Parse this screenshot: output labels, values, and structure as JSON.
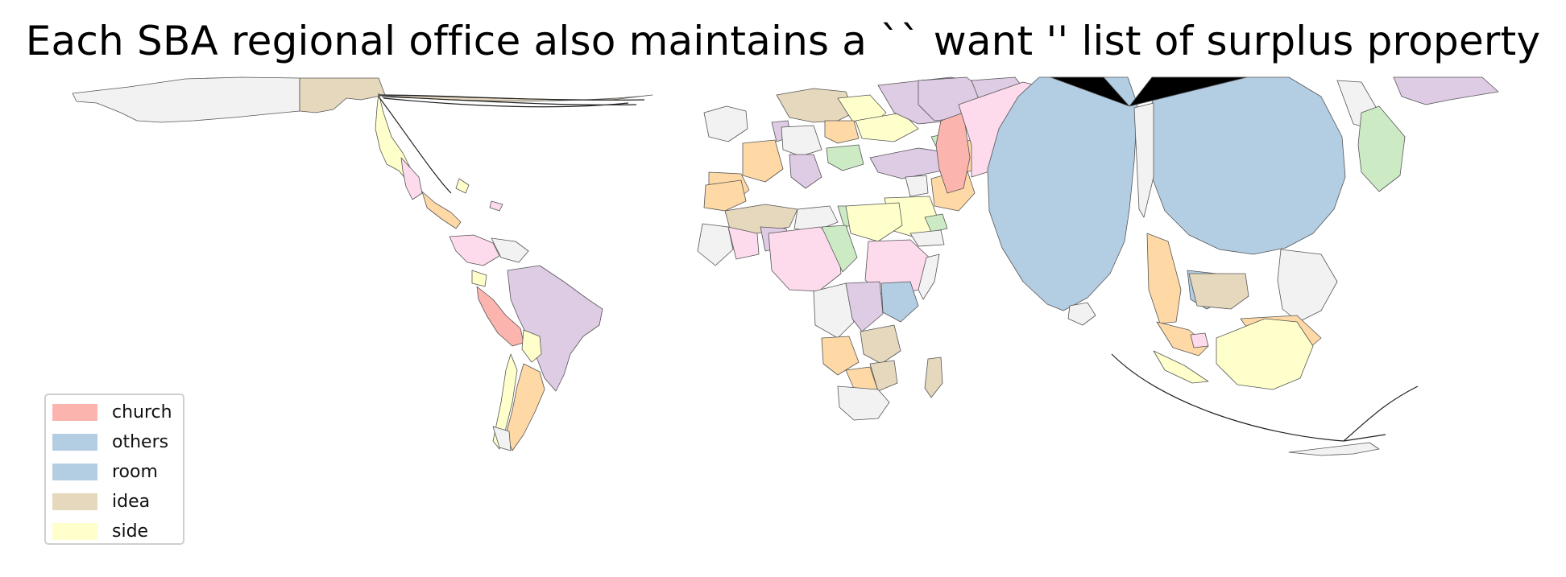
{
  "title": "Each SBA regional office also maintains a `` want '' list of surplus property",
  "legend": {
    "placement": "lower-left",
    "items": [
      {
        "label": "church",
        "color": "#fbb4ae"
      },
      {
        "label": "others",
        "color": "#b3cde3"
      },
      {
        "label": "room",
        "color": "#b3cde3"
      },
      {
        "label": "idea",
        "color": "#e5d8bd"
      },
      {
        "label": "side",
        "color": "#ffffcc"
      }
    ]
  },
  "map": {
    "type": "cartogram",
    "palette": {
      "pink": "#fddaec",
      "lavender": "#decbe4",
      "orange": "#fed9a6",
      "green": "#ccebc5",
      "grey": "#f2f2f2",
      "outline": "#555555"
    }
  }
}
